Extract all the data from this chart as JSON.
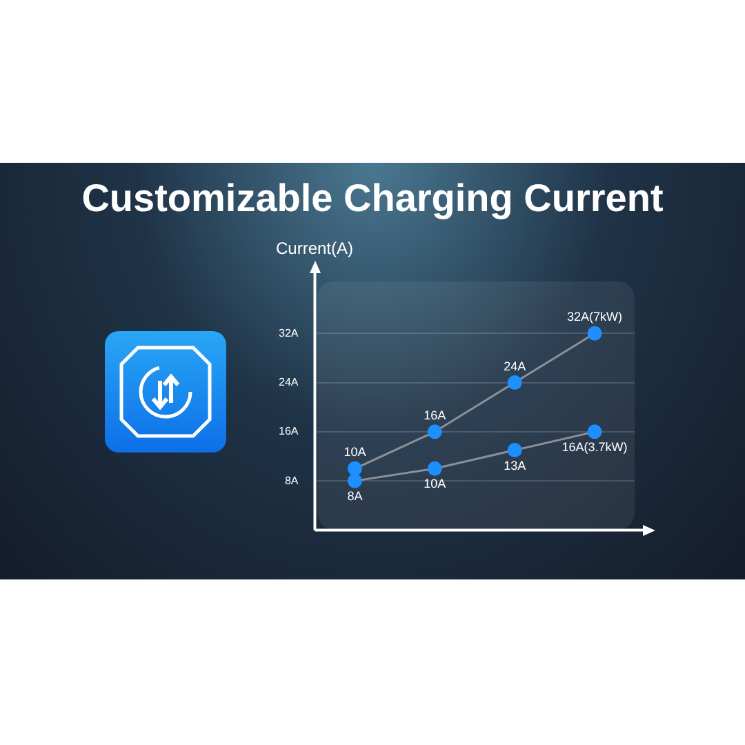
{
  "chart_data": {
    "type": "line",
    "title": "Customizable Charging Current",
    "ylabel": "Current(A)",
    "categories": [
      null,
      null,
      null,
      null
    ],
    "series": [
      {
        "color": "#1e8fff",
        "values": [
          10,
          16,
          24,
          32
        ],
        "value_labels": [
          "10A",
          "16A",
          "24A",
          "32A(7kW)"
        ]
      },
      {
        "color": "#1e8fff",
        "values": [
          8,
          10,
          13,
          16
        ],
        "value_labels": [
          "8A",
          "10A",
          "13A",
          "16A(3.7kW)"
        ]
      }
    ],
    "ylim": [
      0,
      40
    ],
    "yticks": [
      {
        "value": 8,
        "label": "8A"
      },
      {
        "value": 16,
        "label": "16A"
      },
      {
        "value": 24,
        "label": "24A"
      },
      {
        "value": 32,
        "label": "32A"
      }
    ],
    "grid": "y",
    "tick_labels": "y",
    "marker": "circle",
    "line_style": "solid",
    "legend": false
  }
}
